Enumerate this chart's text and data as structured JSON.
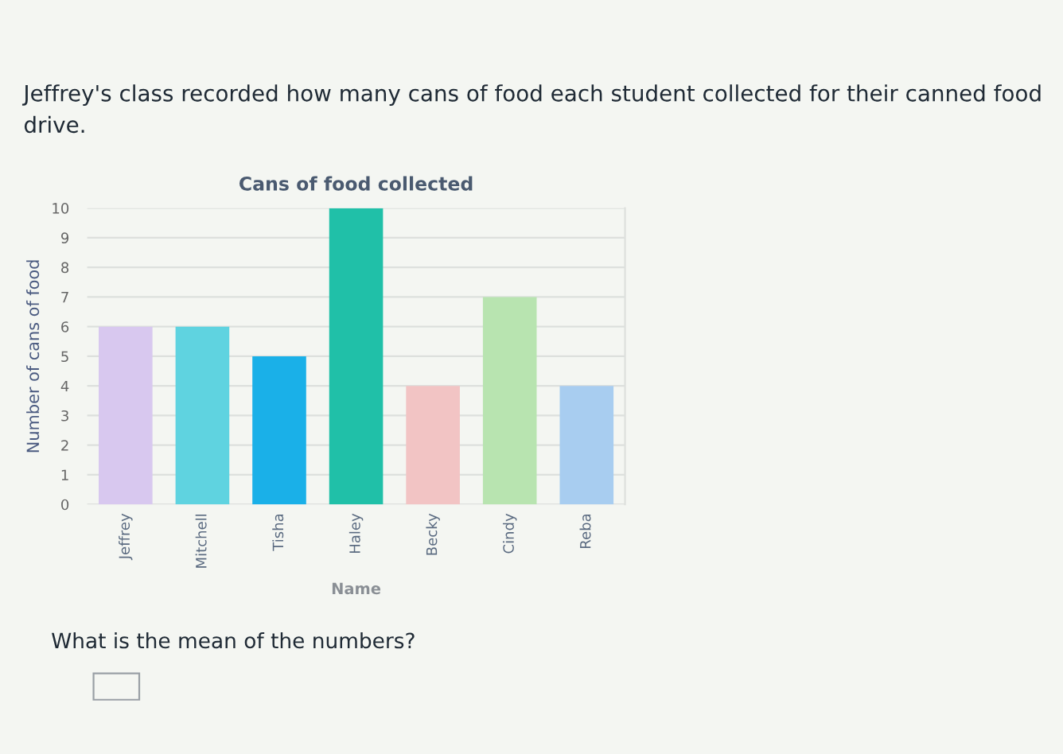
{
  "chart_data": {
    "type": "bar",
    "title": "Cans of food collected",
    "xlabel": "Name",
    "ylabel": "Number of cans of food",
    "categories": [
      "Jeffrey",
      "Mitchell",
      "Tisha",
      "Haley",
      "Becky",
      "Cindy",
      "Reba"
    ],
    "values": [
      6,
      6,
      5,
      10,
      4,
      7,
      4
    ],
    "colors": [
      "#d8c8ef",
      "#5fd3e0",
      "#1ab0e8",
      "#20c0a8",
      "#f2c4c4",
      "#b8e4b0",
      "#a8cdf0"
    ],
    "ylim": [
      0,
      10
    ],
    "yticks": [
      0,
      1,
      2,
      3,
      4,
      5,
      6,
      7,
      8,
      9,
      10
    ],
    "grid": "y",
    "annotations": [
      "Jeffrey's class recorded how many cans of food each student collected for their canned food drive.",
      "What is the mean of the numbers?"
    ]
  }
}
